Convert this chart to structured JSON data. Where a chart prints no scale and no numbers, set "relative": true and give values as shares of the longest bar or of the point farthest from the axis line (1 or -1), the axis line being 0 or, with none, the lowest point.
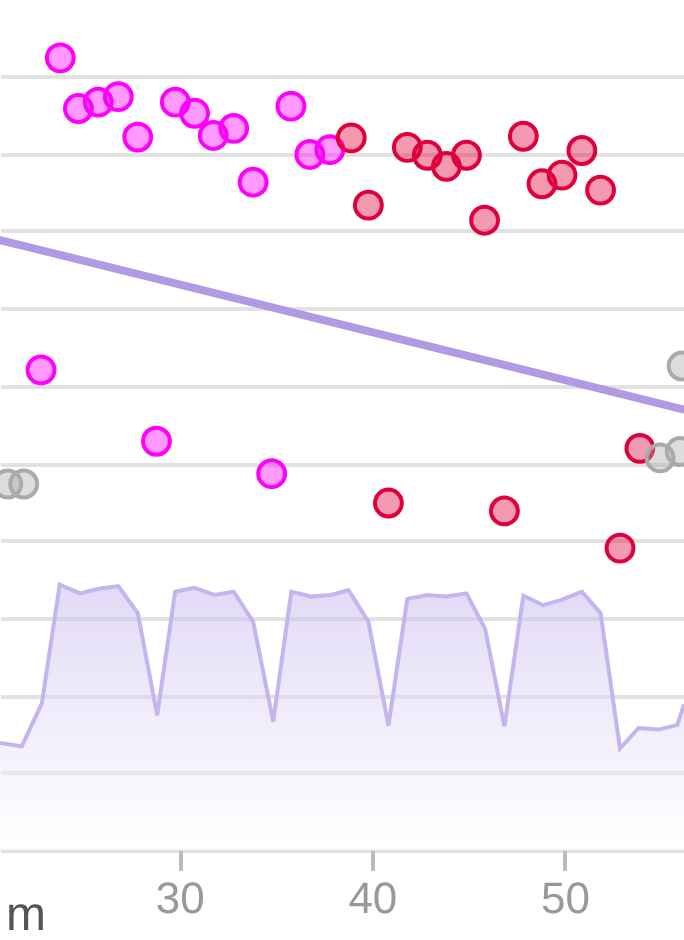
{
  "chart_data": {
    "type": "scatter",
    "relative": true,
    "xlim": [
      20.7,
      56.2
    ],
    "xticks": [
      30,
      40,
      50
    ],
    "grid": "y",
    "annotations": [
      "m"
    ],
    "series": [
      {
        "type": "area",
        "marker": "none",
        "color": "#c5b5ef",
        "x": [
          20.7,
          21.83,
          22.87,
          23.8,
          24.84,
          25.88,
          26.84,
          27.85,
          28.86,
          29.79,
          30.79,
          31.83,
          32.83,
          33.84,
          34.88,
          35.82,
          36.85,
          37.89,
          38.79,
          39.82,
          40.86,
          41.84,
          42.88,
          43.87,
          44.91,
          45.88,
          46.88,
          47.86,
          48.9,
          49.87,
          50.9,
          51.87,
          52.88,
          53.84,
          54.88,
          55.86,
          56.2
        ],
        "values": [
          0.135,
          0.131,
          0.185,
          0.335,
          0.324,
          0.33,
          0.333,
          0.299,
          0.17,
          0.326,
          0.331,
          0.322,
          0.326,
          0.288,
          0.162,
          0.326,
          0.32,
          0.322,
          0.328,
          0.288,
          0.157,
          0.317,
          0.322,
          0.32,
          0.324,
          0.279,
          0.156,
          0.321,
          0.309,
          0.316,
          0.326,
          0.299,
          0.128,
          0.154,
          0.152,
          0.158,
          0.184
        ]
      },
      {
        "type": "line",
        "marker": "none",
        "color": "#b09ae4",
        "x": [
          20.7,
          56.2
        ],
        "values": [
          0.77,
          0.556
        ]
      },
      {
        "marker": "circle",
        "color": "#ff00ff",
        "x": [
          23.83,
          24.77,
          25.8,
          26.84,
          27.85,
          29.8,
          30.8,
          31.77,
          32.83,
          33.84,
          35.8,
          36.78,
          37.82,
          22.83,
          28.82,
          34.8
        ],
        "values": [
          1.0,
          0.936,
          0.944,
          0.951,
          0.9,
          0.944,
          0.93,
          0.902,
          0.911,
          0.843,
          0.939,
          0.878,
          0.884,
          0.606,
          0.516,
          0.475
        ]
      },
      {
        "marker": "circle",
        "color": "#e0003c",
        "x": [
          38.93,
          39.82,
          41.84,
          42.88,
          43.87,
          44.91,
          45.85,
          47.86,
          48.83,
          49.87,
          50.9,
          51.87,
          53.91,
          40.86,
          46.88,
          52.88
        ],
        "values": [
          0.899,
          0.814,
          0.887,
          0.877,
          0.863,
          0.877,
          0.795,
          0.901,
          0.841,
          0.852,
          0.883,
          0.833,
          0.507,
          0.438,
          0.428,
          0.381
        ]
      },
      {
        "marker": "circle",
        "color": "#aaaaaa",
        "x": [
          21.1,
          21.93,
          54.96,
          56.0,
          56.1
        ],
        "values": [
          0.462,
          0.462,
          0.495,
          0.503,
          0.611
        ]
      }
    ]
  }
}
